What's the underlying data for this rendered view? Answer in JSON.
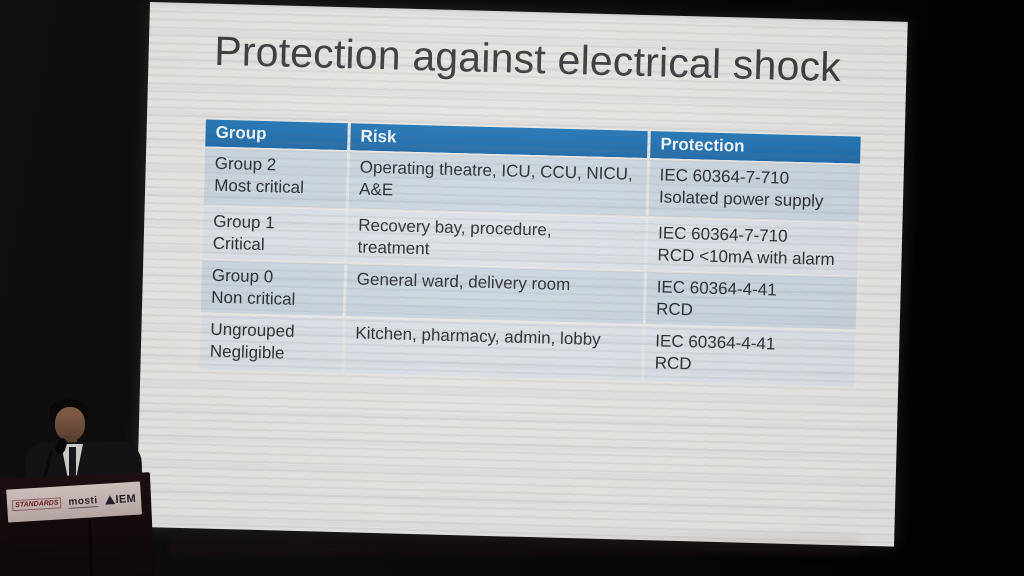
{
  "slide": {
    "title": "Protection against electrical shock",
    "table": {
      "headers": [
        "Group",
        "Risk",
        "Protection"
      ],
      "rows": [
        {
          "group": "Group 2\nMost critical",
          "risk": "Operating theatre, ICU, CCU, NICU,\nA&E",
          "protection": "IEC 60364-7-710\nIsolated power supply"
        },
        {
          "group": "Group 1\nCritical",
          "risk": "Recovery bay, procedure,\ntreatment",
          "protection": "IEC 60364-7-710\nRCD <10mA with alarm"
        },
        {
          "group": "Group 0\nNon critical",
          "risk": "General ward, delivery room",
          "protection": "IEC 60364-4-41\nRCD"
        },
        {
          "group": "Ungrouped\nNegligible",
          "risk": "Kitchen, pharmacy, admin, lobby",
          "protection": "IEC 60364-4-41\nRCD"
        }
      ]
    }
  },
  "podium": {
    "logos": {
      "standards": "STANDARDS",
      "mosti": "mosti",
      "iem": "IEM"
    }
  },
  "colors": {
    "header_blue": "#1e6fb2",
    "row_shaded": "#ccd6de",
    "row_light": "#dce1e7",
    "slide_background": "#e7e6e3"
  }
}
